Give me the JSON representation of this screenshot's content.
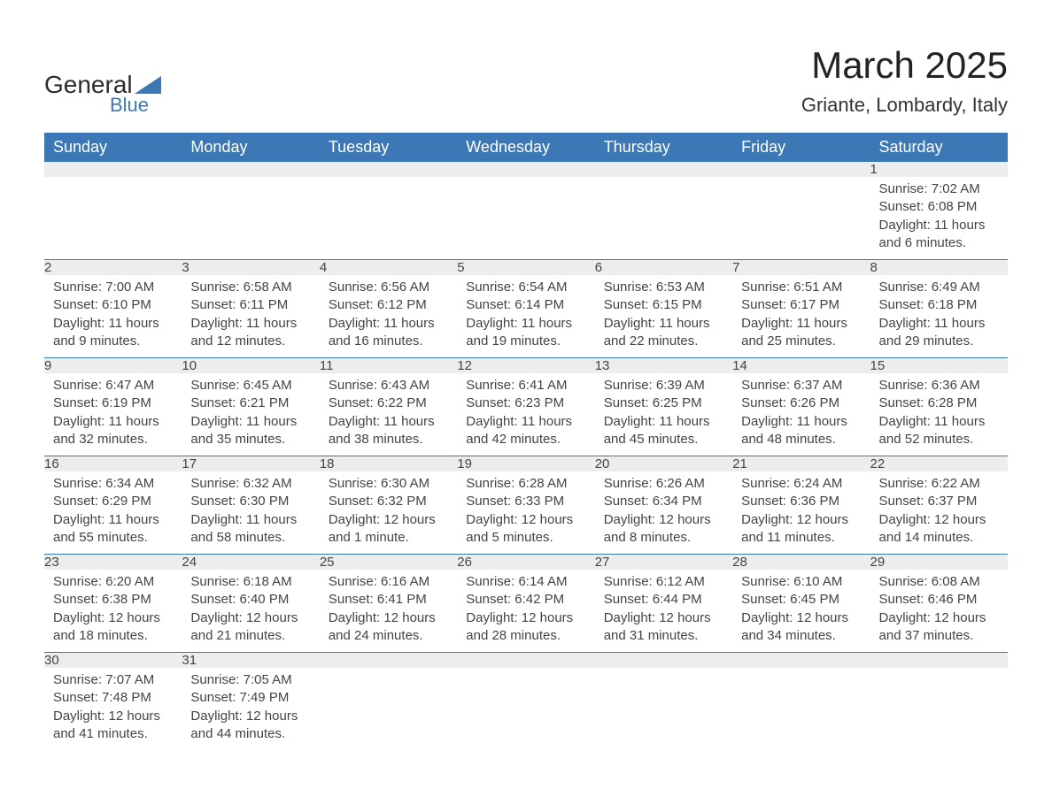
{
  "logo": {
    "main": "General",
    "sub": "Blue",
    "triangle_color": "#3b78b5"
  },
  "title": "March 2025",
  "location": "Griante, Lombardy, Italy",
  "colors": {
    "header_bg": "#3b78b5",
    "header_text": "#ffffff",
    "daynum_bg": "#ededed",
    "row_divider": "#3b78b5",
    "body_text": "#444444",
    "background": "#ffffff"
  },
  "typography": {
    "title_fontsize": 42,
    "location_fontsize": 22,
    "weekday_fontsize": 18,
    "daynum_fontsize": 17,
    "cell_fontsize": 15,
    "font_family": "Arial"
  },
  "layout": {
    "columns": 7,
    "rows": 6,
    "first_cell_index": 6
  },
  "weekdays": [
    "Sunday",
    "Monday",
    "Tuesday",
    "Wednesday",
    "Thursday",
    "Friday",
    "Saturday"
  ],
  "days": [
    {
      "n": 1,
      "sunrise": "7:02 AM",
      "sunset": "6:08 PM",
      "daylight": "11 hours and 6 minutes."
    },
    {
      "n": 2,
      "sunrise": "7:00 AM",
      "sunset": "6:10 PM",
      "daylight": "11 hours and 9 minutes."
    },
    {
      "n": 3,
      "sunrise": "6:58 AM",
      "sunset": "6:11 PM",
      "daylight": "11 hours and 12 minutes."
    },
    {
      "n": 4,
      "sunrise": "6:56 AM",
      "sunset": "6:12 PM",
      "daylight": "11 hours and 16 minutes."
    },
    {
      "n": 5,
      "sunrise": "6:54 AM",
      "sunset": "6:14 PM",
      "daylight": "11 hours and 19 minutes."
    },
    {
      "n": 6,
      "sunrise": "6:53 AM",
      "sunset": "6:15 PM",
      "daylight": "11 hours and 22 minutes."
    },
    {
      "n": 7,
      "sunrise": "6:51 AM",
      "sunset": "6:17 PM",
      "daylight": "11 hours and 25 minutes."
    },
    {
      "n": 8,
      "sunrise": "6:49 AM",
      "sunset": "6:18 PM",
      "daylight": "11 hours and 29 minutes."
    },
    {
      "n": 9,
      "sunrise": "6:47 AM",
      "sunset": "6:19 PM",
      "daylight": "11 hours and 32 minutes."
    },
    {
      "n": 10,
      "sunrise": "6:45 AM",
      "sunset": "6:21 PM",
      "daylight": "11 hours and 35 minutes."
    },
    {
      "n": 11,
      "sunrise": "6:43 AM",
      "sunset": "6:22 PM",
      "daylight": "11 hours and 38 minutes."
    },
    {
      "n": 12,
      "sunrise": "6:41 AM",
      "sunset": "6:23 PM",
      "daylight": "11 hours and 42 minutes."
    },
    {
      "n": 13,
      "sunrise": "6:39 AM",
      "sunset": "6:25 PM",
      "daylight": "11 hours and 45 minutes."
    },
    {
      "n": 14,
      "sunrise": "6:37 AM",
      "sunset": "6:26 PM",
      "daylight": "11 hours and 48 minutes."
    },
    {
      "n": 15,
      "sunrise": "6:36 AM",
      "sunset": "6:28 PM",
      "daylight": "11 hours and 52 minutes."
    },
    {
      "n": 16,
      "sunrise": "6:34 AM",
      "sunset": "6:29 PM",
      "daylight": "11 hours and 55 minutes."
    },
    {
      "n": 17,
      "sunrise": "6:32 AM",
      "sunset": "6:30 PM",
      "daylight": "11 hours and 58 minutes."
    },
    {
      "n": 18,
      "sunrise": "6:30 AM",
      "sunset": "6:32 PM",
      "daylight": "12 hours and 1 minute."
    },
    {
      "n": 19,
      "sunrise": "6:28 AM",
      "sunset": "6:33 PM",
      "daylight": "12 hours and 5 minutes."
    },
    {
      "n": 20,
      "sunrise": "6:26 AM",
      "sunset": "6:34 PM",
      "daylight": "12 hours and 8 minutes."
    },
    {
      "n": 21,
      "sunrise": "6:24 AM",
      "sunset": "6:36 PM",
      "daylight": "12 hours and 11 minutes."
    },
    {
      "n": 22,
      "sunrise": "6:22 AM",
      "sunset": "6:37 PM",
      "daylight": "12 hours and 14 minutes."
    },
    {
      "n": 23,
      "sunrise": "6:20 AM",
      "sunset": "6:38 PM",
      "daylight": "12 hours and 18 minutes."
    },
    {
      "n": 24,
      "sunrise": "6:18 AM",
      "sunset": "6:40 PM",
      "daylight": "12 hours and 21 minutes."
    },
    {
      "n": 25,
      "sunrise": "6:16 AM",
      "sunset": "6:41 PM",
      "daylight": "12 hours and 24 minutes."
    },
    {
      "n": 26,
      "sunrise": "6:14 AM",
      "sunset": "6:42 PM",
      "daylight": "12 hours and 28 minutes."
    },
    {
      "n": 27,
      "sunrise": "6:12 AM",
      "sunset": "6:44 PM",
      "daylight": "12 hours and 31 minutes."
    },
    {
      "n": 28,
      "sunrise": "6:10 AM",
      "sunset": "6:45 PM",
      "daylight": "12 hours and 34 minutes."
    },
    {
      "n": 29,
      "sunrise": "6:08 AM",
      "sunset": "6:46 PM",
      "daylight": "12 hours and 37 minutes."
    },
    {
      "n": 30,
      "sunrise": "7:07 AM",
      "sunset": "7:48 PM",
      "daylight": "12 hours and 41 minutes."
    },
    {
      "n": 31,
      "sunrise": "7:05 AM",
      "sunset": "7:49 PM",
      "daylight": "12 hours and 44 minutes."
    }
  ],
  "labels": {
    "sunrise": "Sunrise:",
    "sunset": "Sunset:",
    "daylight": "Daylight:"
  }
}
